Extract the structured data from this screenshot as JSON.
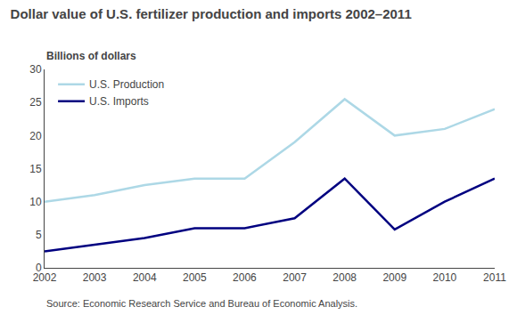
{
  "chart_data": {
    "type": "line",
    "title": "Dollar value of U.S. fertilizer production and imports 2002–2011",
    "ylabel": "Billions of dollars",
    "annotations": [
      "Source: Economic Research Service and Bureau of Economic Analysis."
    ],
    "x": [
      2002,
      2003,
      2004,
      2005,
      2006,
      2007,
      2008,
      2009,
      2010,
      2011
    ],
    "series": [
      {
        "name": "U.S. Production",
        "color": "#add8e6",
        "values": [
          10.0,
          11.0,
          12.5,
          13.5,
          13.5,
          19.0,
          25.5,
          20.0,
          21.0,
          24.0
        ]
      },
      {
        "name": "U.S. Imports",
        "color": "#000080",
        "values": [
          2.5,
          3.5,
          4.5,
          6.0,
          6.0,
          7.5,
          13.5,
          5.8,
          10.0,
          13.5
        ]
      }
    ],
    "xlim": [
      2002,
      2011
    ],
    "xticks": [
      2002,
      2003,
      2004,
      2005,
      2006,
      2007,
      2008,
      2009,
      2010,
      2011
    ],
    "ylim": [
      0,
      30
    ],
    "yticks": [
      0,
      5,
      10,
      15,
      20,
      25,
      30
    ],
    "grid": false,
    "legend": "upper left"
  }
}
